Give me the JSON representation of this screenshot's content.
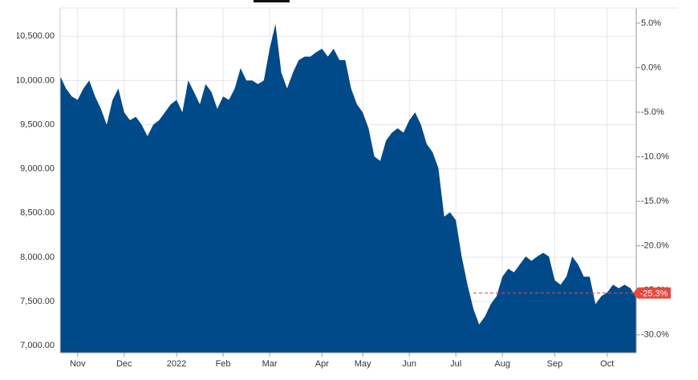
{
  "chart_data": {
    "type": "area",
    "categories": [
      null,
      null,
      null,
      "Nov",
      null,
      null,
      null,
      null,
      null,
      null,
      null,
      "Dec",
      null,
      null,
      null,
      null,
      null,
      null,
      null,
      null,
      "2022",
      null,
      null,
      null,
      null,
      null,
      null,
      null,
      "Feb",
      null,
      null,
      null,
      null,
      null,
      null,
      null,
      "Mar",
      null,
      null,
      null,
      null,
      null,
      null,
      null,
      null,
      "Apr",
      null,
      null,
      null,
      null,
      null,
      null,
      "May",
      null,
      null,
      null,
      null,
      null,
      null,
      null,
      "Jun",
      null,
      null,
      null,
      null,
      null,
      null,
      null,
      "Jul",
      null,
      null,
      null,
      null,
      null,
      null,
      null,
      "Aug",
      null,
      null,
      null,
      null,
      null,
      null,
      null,
      null,
      "Sep",
      null,
      null,
      null,
      null,
      null,
      null,
      null,
      null,
      "Oct",
      null,
      null,
      null,
      null,
      null
    ],
    "values": [
      10050,
      9910,
      9820,
      9780,
      9910,
      10000,
      9820,
      9680,
      9500,
      9780,
      9910,
      9640,
      9550,
      9590,
      9500,
      9370,
      9500,
      9550,
      9640,
      9730,
      9780,
      9640,
      10000,
      9870,
      9730,
      9960,
      9870,
      9680,
      9820,
      9780,
      9910,
      10140,
      10000,
      10000,
      9960,
      10000,
      10360,
      10640,
      10090,
      9910,
      10090,
      10230,
      10270,
      10270,
      10320,
      10360,
      10270,
      10360,
      10230,
      10230,
      9910,
      9730,
      9640,
      9460,
      9140,
      9090,
      9320,
      9410,
      9460,
      9410,
      9550,
      9640,
      9500,
      9280,
      9190,
      9010,
      8460,
      8510,
      8420,
      8010,
      7690,
      7420,
      7240,
      7330,
      7470,
      7560,
      7780,
      7870,
      7830,
      7920,
      8010,
      7960,
      8010,
      8050,
      8010,
      7740,
      7690,
      7780,
      8010,
      7920,
      7780,
      7780,
      7470,
      7560,
      7600,
      7690,
      7650,
      7690,
      7650,
      7545
    ],
    "color": "#004a8a",
    "ylim": [
      6920,
      10820
    ],
    "yticks": [
      {
        "value": 7000,
        "label": "7,000.00"
      },
      {
        "value": 7500,
        "label": "7,500.00"
      },
      {
        "value": 8000,
        "label": "8,000.00"
      },
      {
        "value": 8500,
        "label": "8,500.00"
      },
      {
        "value": 9000,
        "label": "9,000.00"
      },
      {
        "value": 9500,
        "label": "9,500.00"
      },
      {
        "value": 10000,
        "label": "10,000.00"
      },
      {
        "value": 10500,
        "label": "10,500.00"
      }
    ],
    "y2lim": [
      -32,
      6.7
    ],
    "y2ticks": [
      {
        "value": -30,
        "label": "-30.0%"
      },
      {
        "value": -25,
        "label": "-25.0%"
      },
      {
        "value": -20,
        "label": "-20.0%"
      },
      {
        "value": -15,
        "label": "-15.0%"
      },
      {
        "value": -10,
        "label": "-10.0%"
      },
      {
        "value": -5,
        "label": "-5.0%"
      },
      {
        "value": 0,
        "label": "0.0%"
      },
      {
        "value": 5,
        "label": "5.0%"
      }
    ],
    "last_change": {
      "value": -25.3,
      "label": "-25.3%"
    },
    "grid": true
  }
}
